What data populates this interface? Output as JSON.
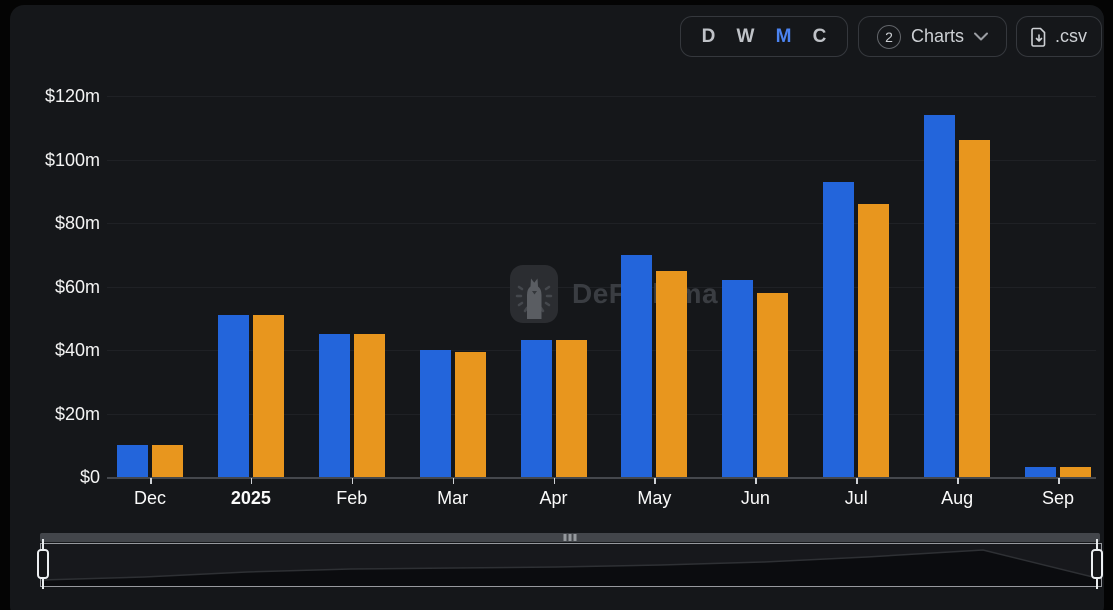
{
  "toolbar": {
    "intervals": [
      {
        "label": "D",
        "active": false
      },
      {
        "label": "W",
        "active": false
      },
      {
        "label": "M",
        "active": true
      },
      {
        "label": "C",
        "active": false
      }
    ],
    "charts": {
      "count": "2",
      "label": "Charts",
      "icon": "chevron-down-icon"
    },
    "csv": {
      "label": ".csv",
      "icon": "file-download-icon"
    }
  },
  "watermark": {
    "text": "DeFiLlama",
    "icon": "llama-logo-icon"
  },
  "colors": {
    "accent_blue": "#4b83f0",
    "bar_blue": "#2365DB",
    "bar_orange": "#E8961E",
    "panel_bg": "#15171a",
    "gridline": "#1f2125"
  },
  "chart_data": {
    "type": "bar",
    "title": "",
    "xlabel": "",
    "ylabel": "",
    "categories": [
      "Dec",
      "2025",
      "Feb",
      "Mar",
      "Apr",
      "May",
      "Jun",
      "Jul",
      "Aug",
      "Sep"
    ],
    "bold_category": "2025",
    "series": [
      {
        "name": "blue",
        "color": "#2365DB",
        "values": [
          10,
          51,
          45,
          40,
          43,
          70,
          62,
          93,
          114,
          3
        ]
      },
      {
        "name": "orange",
        "color": "#E8961E",
        "values": [
          10,
          51,
          45,
          39.5,
          43,
          65,
          58,
          86,
          106,
          3
        ]
      }
    ],
    "ylim": [
      0,
      120
    ],
    "ystep": 20,
    "y_tick_labels": [
      "$0",
      "$20m",
      "$40m",
      "$60m",
      "$80m",
      "$100m",
      "$120m"
    ],
    "grid": true,
    "legend": "none",
    "unit": "USD millions"
  },
  "brush": {
    "minimap_points": [
      [
        0,
        36
      ],
      [
        103,
        33
      ],
      [
        206,
        28
      ],
      [
        310,
        25
      ],
      [
        413,
        24
      ],
      [
        516,
        23
      ],
      [
        620,
        21
      ],
      [
        723,
        18
      ],
      [
        826,
        13
      ],
      [
        942,
        6
      ],
      [
        1060,
        35
      ]
    ],
    "window": {
      "start_category": "Dec",
      "end_category": "Sep"
    }
  }
}
